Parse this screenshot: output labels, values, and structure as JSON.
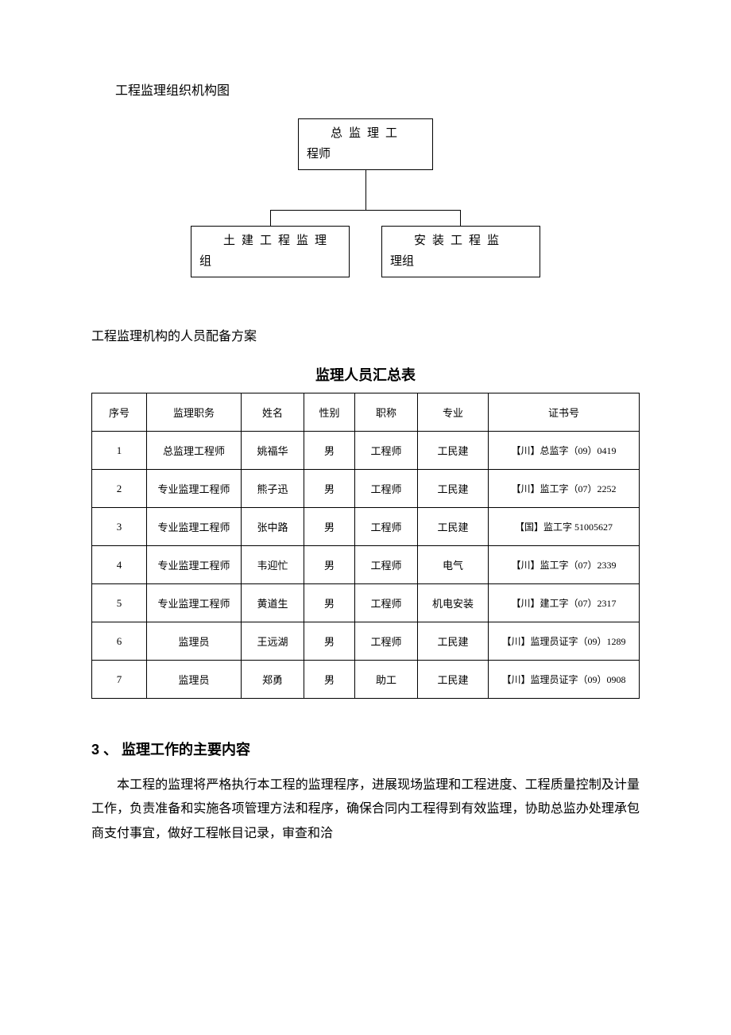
{
  "section1": {
    "title": "工程监理组织机构图"
  },
  "orgchart": {
    "top": {
      "line1": "总监理工",
      "line2": "程师"
    },
    "left": {
      "line1": "土建工程监理",
      "line2": "组"
    },
    "right": {
      "line1": "安装工程监",
      "line2": "理组"
    }
  },
  "section2": {
    "title": "工程监理机构的人员配备方案"
  },
  "table": {
    "title": "监理人员汇总表",
    "columns": [
      "序号",
      "监理职务",
      "姓名",
      "性别",
      "职称",
      "专业",
      "证书号"
    ],
    "col_widths": [
      "60px",
      "110px",
      "70px",
      "55px",
      "70px",
      "80px",
      "auto"
    ],
    "rows": [
      [
        "1",
        "总监理工程师",
        "姚福华",
        "男",
        "工程师",
        "工民建",
        "【川】总监字（09）0419"
      ],
      [
        "2",
        "专业监理工程师",
        "熊子迅",
        "男",
        "工程师",
        "工民建",
        "【川】监工字（07）2252"
      ],
      [
        "3",
        "专业监理工程师",
        "张中路",
        "男",
        "工程师",
        "工民建",
        "【国】监工字 51005627"
      ],
      [
        "4",
        "专业监理工程师",
        "韦迎忙",
        "男",
        "工程师",
        "电气",
        "【川】监工字（07）2339"
      ],
      [
        "5",
        "专业监理工程师",
        "黄道生",
        "男",
        "工程师",
        "机电安装",
        "【川】建工字（07）2317"
      ],
      [
        "6",
        "监理员",
        "王远湖",
        "男",
        "工程师",
        "工民建",
        "【川】监理员证字（09）1289"
      ],
      [
        "7",
        "监理员",
        "郑勇",
        "男",
        "助工",
        "工民建",
        "【川】监理员证字（09）0908"
      ]
    ]
  },
  "section3": {
    "heading": "3 、 监理工作的主要内容",
    "para": "本工程的监理将严格执行本工程的监理程序，进展现场监理和工程进度、工程质量控制及计量工作，负责准备和实施各项管理方法和程序，确保合同内工程得到有效监理，协助总监办处理承包商支付事宜，做好工程帐目记录，审查和洽"
  }
}
